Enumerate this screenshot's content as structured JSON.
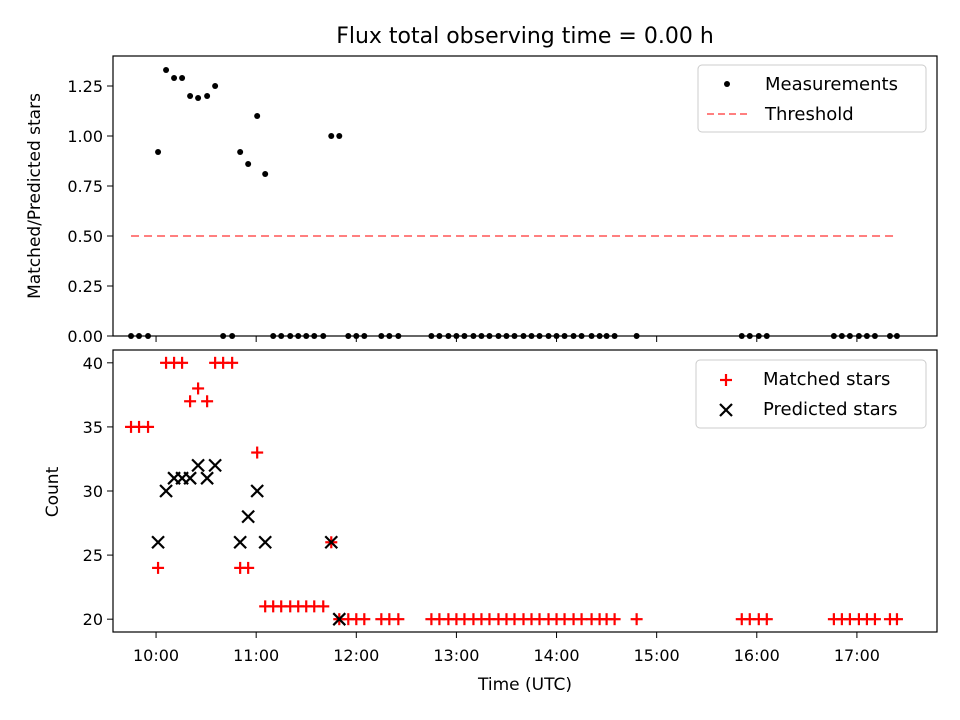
{
  "chart_data": [
    {
      "type": "scatter",
      "title": "Flux total observing time = 0.00 h",
      "xlabel": "",
      "ylabel": "Matched/Predicted stars",
      "xlim": [
        9.57,
        17.8
      ],
      "ylim": [
        0.0,
        1.4
      ],
      "yticks": [
        0.0,
        0.25,
        0.5,
        0.75,
        1.0,
        1.25
      ],
      "ytick_labels": [
        "0.00",
        "0.25",
        "0.50",
        "0.75",
        "1.00",
        "1.25"
      ],
      "legend": [
        "Measurements",
        "Threshold"
      ],
      "legend_position": "top-right",
      "series": [
        {
          "name": "Measurements",
          "style": "dot",
          "color": "#000000",
          "x": [
            9.75,
            9.83,
            9.92,
            10.02,
            10.1,
            10.18,
            10.26,
            10.34,
            10.42,
            10.51,
            10.59,
            10.67,
            10.76,
            10.84,
            10.92,
            11.01,
            11.09,
            11.17,
            11.25,
            11.34,
            11.42,
            11.5,
            11.58,
            11.67,
            11.75,
            11.83,
            11.92,
            12.0,
            12.08,
            12.25,
            12.33,
            12.42,
            12.75,
            12.83,
            12.92,
            13.0,
            13.08,
            13.17,
            13.25,
            13.33,
            13.42,
            13.5,
            13.58,
            13.67,
            13.75,
            13.83,
            13.92,
            14.0,
            14.08,
            14.17,
            14.25,
            14.35,
            14.43,
            14.5,
            14.58,
            14.8,
            15.85,
            15.93,
            16.02,
            16.1,
            16.77,
            16.85,
            16.93,
            17.02,
            17.1,
            17.18,
            17.33,
            17.4
          ],
          "y": [
            0.0,
            0.0,
            0.0,
            0.92,
            1.33,
            1.29,
            1.29,
            1.2,
            1.19,
            1.2,
            1.25,
            0.0,
            0.0,
            0.92,
            0.86,
            1.1,
            0.81,
            0.0,
            0.0,
            0.0,
            0.0,
            0.0,
            0.0,
            0.0,
            1.0,
            1.0,
            0.0,
            0.0,
            0.0,
            0.0,
            0.0,
            0.0,
            0.0,
            0.0,
            0.0,
            0.0,
            0.0,
            0.0,
            0.0,
            0.0,
            0.0,
            0.0,
            0.0,
            0.0,
            0.0,
            0.0,
            0.0,
            0.0,
            0.0,
            0.0,
            0.0,
            0.0,
            0.0,
            0.0,
            0.0,
            0.0,
            0.0,
            0.0,
            0.0,
            0.0,
            0.0,
            0.0,
            0.0,
            0.0,
            0.0,
            0.0,
            0.0,
            0.0
          ]
        },
        {
          "name": "Threshold",
          "style": "dashed-line",
          "color": "#ff7f7f",
          "x": [
            9.75,
            17.4
          ],
          "y": [
            0.5,
            0.5
          ]
        }
      ]
    },
    {
      "type": "scatter",
      "title": "",
      "xlabel": "Time (UTC)",
      "ylabel": "Count",
      "xlim": [
        9.57,
        17.8
      ],
      "ylim": [
        19.0,
        41.0
      ],
      "yticks": [
        20,
        25,
        30,
        35,
        40
      ],
      "ytick_labels": [
        "20",
        "25",
        "30",
        "35",
        "40"
      ],
      "xticks": [
        10,
        11,
        12,
        13,
        14,
        15,
        16,
        17
      ],
      "xtick_labels": [
        "10:00",
        "11:00",
        "12:00",
        "13:00",
        "14:00",
        "15:00",
        "16:00",
        "17:00"
      ],
      "legend": [
        "Matched stars",
        "Predicted stars"
      ],
      "legend_position": "top-right",
      "series": [
        {
          "name": "Matched stars",
          "style": "plus",
          "color": "#ff0000",
          "x": [
            9.75,
            9.83,
            9.92,
            10.02,
            10.1,
            10.18,
            10.26,
            10.34,
            10.42,
            10.51,
            10.59,
            10.67,
            10.76,
            10.84,
            10.92,
            11.01,
            11.09,
            11.17,
            11.25,
            11.34,
            11.42,
            11.5,
            11.58,
            11.67,
            11.75,
            11.83,
            11.92,
            12.0,
            12.08,
            12.25,
            12.33,
            12.42,
            12.75,
            12.83,
            12.92,
            13.0,
            13.08,
            13.17,
            13.25,
            13.33,
            13.42,
            13.5,
            13.58,
            13.67,
            13.75,
            13.83,
            13.92,
            14.0,
            14.08,
            14.17,
            14.25,
            14.35,
            14.43,
            14.5,
            14.58,
            14.8,
            15.85,
            15.93,
            16.02,
            16.1,
            16.77,
            16.85,
            16.93,
            17.02,
            17.1,
            17.18,
            17.33,
            17.4
          ],
          "y": [
            35,
            35,
            35,
            24,
            40,
            40,
            40,
            37,
            38,
            37,
            40,
            40,
            40,
            24,
            24,
            33,
            21,
            21,
            21,
            21,
            21,
            21,
            21,
            21,
            26,
            20,
            20,
            20,
            20,
            20,
            20,
            20,
            20,
            20,
            20,
            20,
            20,
            20,
            20,
            20,
            20,
            20,
            20,
            20,
            20,
            20,
            20,
            20,
            20,
            20,
            20,
            20,
            20,
            20,
            20,
            20,
            20,
            20,
            20,
            20,
            20,
            20,
            20,
            20,
            20,
            20,
            20,
            20
          ]
        },
        {
          "name": "Predicted stars",
          "style": "x",
          "color": "#000000",
          "x": [
            10.02,
            10.1,
            10.18,
            10.26,
            10.34,
            10.42,
            10.51,
            10.59,
            10.84,
            10.92,
            11.01,
            11.09,
            11.75,
            11.83
          ],
          "y": [
            26,
            30,
            31,
            31,
            31,
            32,
            31,
            32,
            26,
            28,
            30,
            26,
            26,
            20
          ]
        }
      ]
    }
  ]
}
